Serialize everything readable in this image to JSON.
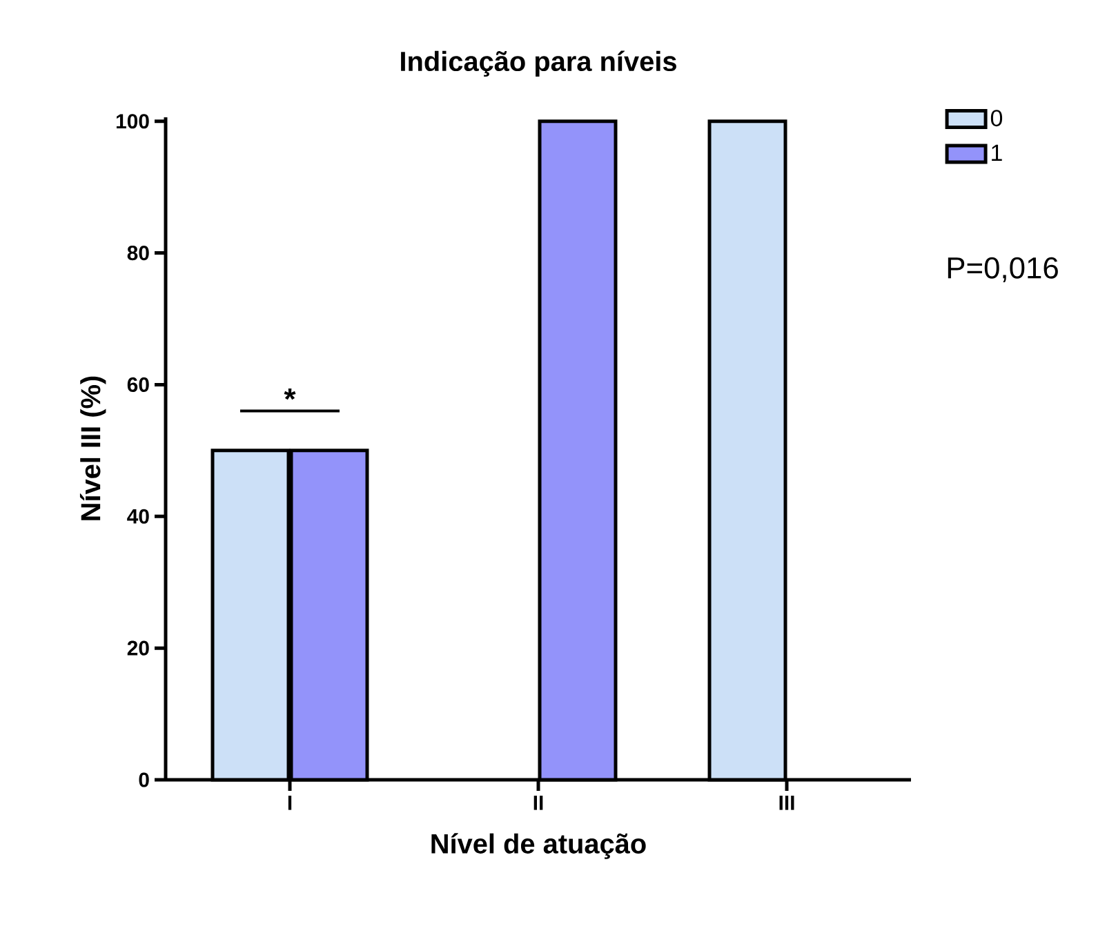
{
  "chart_data": {
    "type": "bar",
    "title": "Indicação para níveis",
    "xlabel": "Nível de atuação",
    "ylabel": "Nível III (%)",
    "categories": [
      "I",
      "II",
      "III"
    ],
    "series": [
      {
        "name": "0",
        "color": "#cce0f7",
        "values": [
          50,
          null,
          100
        ]
      },
      {
        "name": "1",
        "color": "#9393fa",
        "values": [
          50,
          100,
          null
        ]
      }
    ],
    "ylim": [
      0,
      100
    ],
    "yticks": [
      0,
      20,
      40,
      60,
      80,
      100
    ],
    "grid": false,
    "legend": "top right",
    "annotations": [
      "*",
      "P=0,016"
    ]
  }
}
